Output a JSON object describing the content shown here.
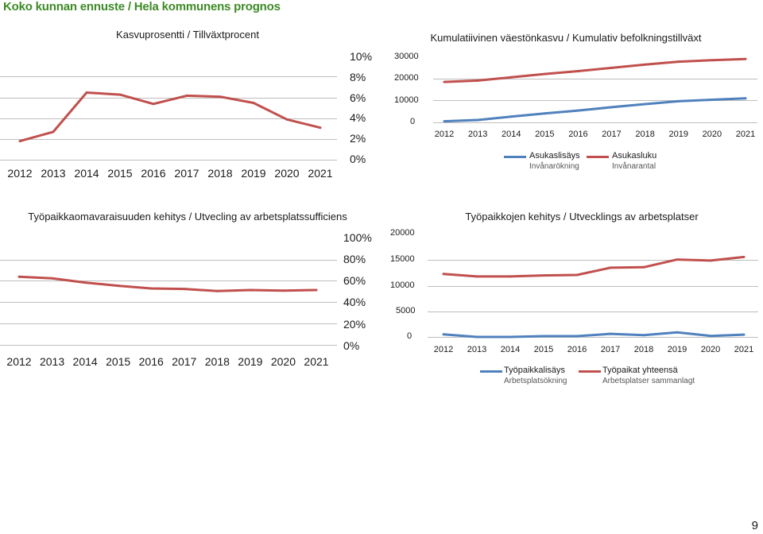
{
  "header": "Koko kunnan ennuste /  Hela kommunens prognos",
  "page_number": "9",
  "colors": {
    "header": "#3d8a26",
    "red": "#c0504d",
    "blue": "#4f81bd",
    "grid": "#bdbdbd"
  },
  "chart_data": [
    {
      "id": "growth",
      "type": "line",
      "title": "Kasvuprosentti / Tillväxtprocent",
      "categories": [
        "2012",
        "2013",
        "2014",
        "2015",
        "2016",
        "2017",
        "2018",
        "2019",
        "2020",
        "2021"
      ],
      "y_ticks": [
        "10%",
        "8%",
        "6%",
        "4%",
        "2%",
        "0%"
      ],
      "ylim": [
        0,
        10
      ],
      "series": [
        {
          "name": "Kasvuprosentti",
          "color": "#c0504d",
          "values": [
            1.8,
            2.7,
            6.5,
            6.3,
            5.4,
            6.2,
            6.1,
            5.5,
            3.9,
            3.1
          ]
        }
      ]
    },
    {
      "id": "cumulative",
      "type": "line",
      "title": "Kumulatiivinen väestönkasvu / Kumulativ befolkningstillväxt",
      "categories": [
        "2012",
        "2013",
        "2014",
        "2015",
        "2016",
        "2017",
        "2018",
        "2019",
        "2020",
        "2021"
      ],
      "y_ticks": [
        "30000",
        "20000",
        "10000",
        "0"
      ],
      "ylim": [
        0,
        30000
      ],
      "series": [
        {
          "name": "Asukaslisäys",
          "name_sv": "Invånarökning",
          "color": "#4f81bd",
          "values": [
            500,
            1100,
            2600,
            4100,
            5400,
            6900,
            8300,
            9600,
            10300,
            10900
          ]
        },
        {
          "name": "Asukasluku",
          "name_sv": "Invånarantal",
          "color": "#c0504d",
          "values": [
            18400,
            19000,
            20500,
            22000,
            23300,
            24800,
            26300,
            27600,
            28300,
            28800
          ]
        }
      ]
    },
    {
      "id": "selfsufficiency",
      "type": "line",
      "title": "Työpaikkaomavaraisuuden kehitys / Utvecling av arbetsplatssufficiens",
      "categories": [
        "2012",
        "2013",
        "2014",
        "2015",
        "2016",
        "2017",
        "2018",
        "2019",
        "2020",
        "2021"
      ],
      "y_ticks": [
        "100%",
        "80%",
        "60%",
        "40%",
        "20%",
        "0%"
      ],
      "ylim": [
        0,
        100
      ],
      "series": [
        {
          "name": "Työpaikkaomavaraisuus",
          "color": "#c0504d",
          "values": [
            64,
            62.5,
            58.5,
            55.5,
            53,
            52.5,
            50.5,
            51.5,
            51,
            51.5
          ]
        }
      ]
    },
    {
      "id": "jobs",
      "type": "line",
      "title": "Työpaikkojen kehitys / Utvecklings av arbetsplatser",
      "categories": [
        "2012",
        "2013",
        "2014",
        "2015",
        "2016",
        "2017",
        "2018",
        "2019",
        "2020",
        "2021"
      ],
      "y_ticks": [
        "20000",
        "15000",
        "10000",
        "5000",
        "0"
      ],
      "ylim": [
        0,
        20000
      ],
      "series": [
        {
          "name": "Työpaikkalisäys",
          "name_sv": "Arbetsplatsökning",
          "color": "#4f81bd",
          "values": [
            500,
            0,
            0,
            150,
            150,
            600,
            350,
            900,
            200,
            450
          ]
        },
        {
          "name": "Työpaikat yhteensä",
          "name_sv": "Arbetsplatser sammanlagt",
          "color": "#c0504d",
          "values": [
            12300,
            11800,
            11800,
            12000,
            12100,
            13500,
            13600,
            15100,
            14900,
            15600
          ]
        }
      ]
    }
  ]
}
